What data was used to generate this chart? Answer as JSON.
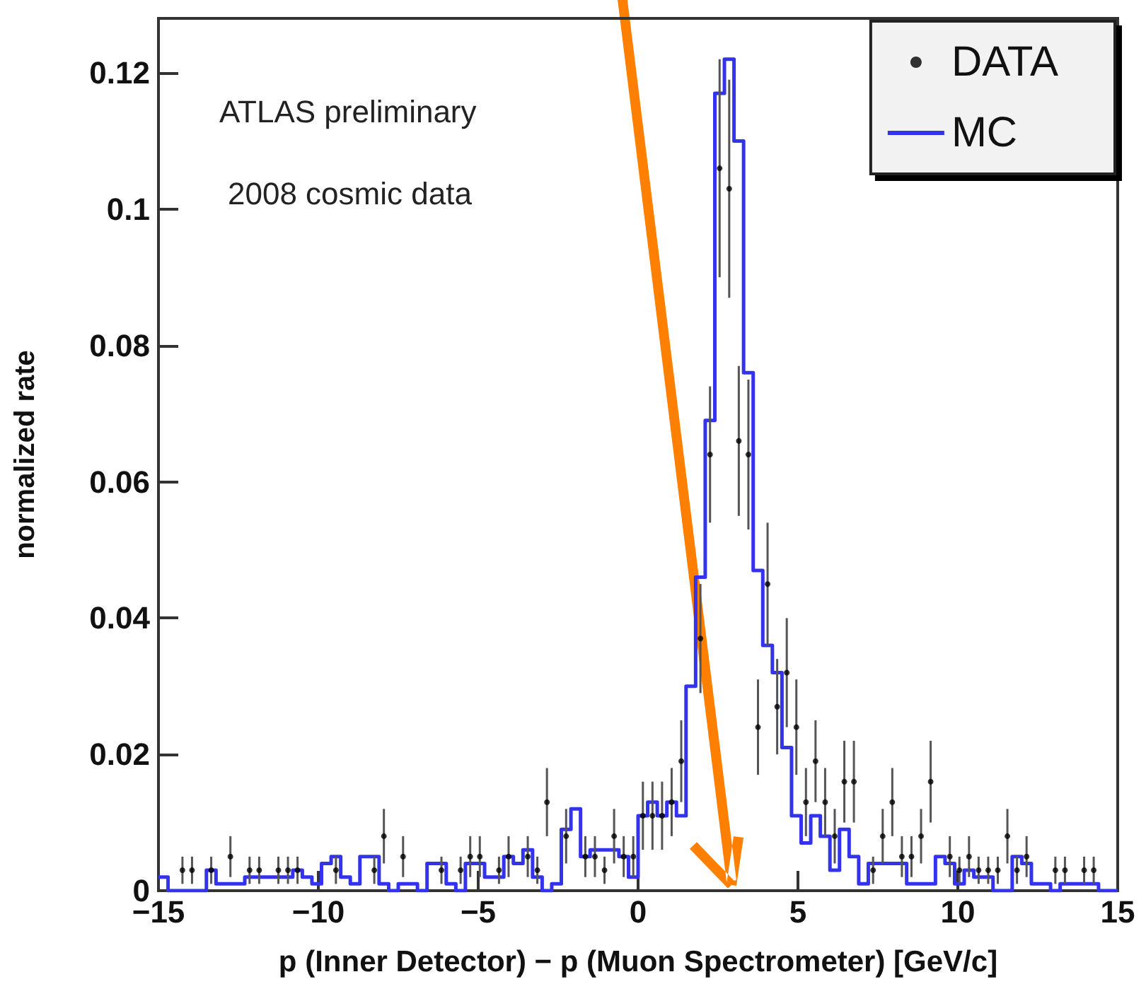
{
  "chart_data": {
    "type": "histogram",
    "xlabel": "p (Inner Detector) − p (Muon Spectrometer) [GeV/c]",
    "ylabel": "normalized rate",
    "annotations": [
      "ATLAS preliminary",
      "2008 cosmic data"
    ],
    "bins": [
      -15,
      -14.7,
      -14.4,
      -14.1,
      -13.8,
      -13.5,
      -13.2,
      -12.9,
      -12.6,
      -12.3,
      -12,
      -11.7,
      -11.4,
      -11.1,
      -10.8,
      -10.5,
      -10.2,
      -9.9,
      -9.6,
      -9.3,
      -9,
      -8.7,
      -8.4,
      -8.1,
      -7.8,
      -7.5,
      -7.2,
      -6.9,
      -6.6,
      -6.3,
      -6,
      -5.7,
      -5.4,
      -5.1,
      -4.8,
      -4.5,
      -4.2,
      -3.9,
      -3.6,
      -3.3,
      -3,
      -2.7,
      -2.4,
      -2.1,
      -1.8,
      -1.5,
      -1.2,
      -0.9,
      -0.6,
      -0.3,
      0,
      0.3,
      0.6,
      0.9,
      1.2,
      1.5,
      1.8,
      2.1,
      2.4,
      2.7,
      3,
      3.3,
      3.6,
      3.9,
      4.2,
      4.5,
      4.8,
      5.1,
      5.4,
      5.7,
      6,
      6.3,
      6.6,
      6.9,
      7.2,
      7.5,
      7.8,
      8.1,
      8.4,
      8.7,
      9,
      9.3,
      9.6,
      9.9,
      10.2,
      10.5,
      10.8,
      11.1,
      11.4,
      11.7,
      12,
      12.3,
      12.6,
      12.9,
      13.2,
      13.5,
      13.8,
      14.1,
      14.4,
      14.7,
      15
    ],
    "series": [
      {
        "name": "DATA",
        "type": "scatter",
        "color": "#000000",
        "x": [
          -14.25,
          -13.95,
          -13.35,
          -12.75,
          -12.15,
          -11.85,
          -11.25,
          -10.95,
          -10.65,
          -9.45,
          -8.25,
          -7.95,
          -7.35,
          -6.15,
          -5.55,
          -5.25,
          -4.95,
          -4.35,
          -4.05,
          -3.45,
          -3.15,
          -2.85,
          -2.25,
          -1.65,
          -1.35,
          -1.05,
          -0.75,
          -0.45,
          -0.15,
          0.15,
          0.45,
          0.75,
          1.05,
          1.35,
          1.95,
          2.25,
          2.55,
          2.85,
          3.15,
          3.45,
          3.75,
          4.05,
          4.35,
          4.65,
          4.95,
          5.25,
          5.55,
          5.85,
          6.15,
          6.45,
          6.75,
          7.35,
          7.65,
          7.95,
          8.25,
          8.55,
          8.85,
          9.15,
          9.75,
          10.05,
          10.35,
          10.65,
          10.95,
          11.25,
          11.55,
          11.85,
          12.15,
          13.05,
          13.35,
          13.95,
          14.25
        ],
        "values": [
          0.003,
          0.003,
          0.003,
          0.005,
          0.003,
          0.003,
          0.003,
          0.003,
          0.003,
          0.003,
          0.003,
          0.008,
          0.005,
          0.003,
          0.003,
          0.005,
          0.005,
          0.003,
          0.005,
          0.005,
          0.003,
          0.013,
          0.008,
          0.005,
          0.005,
          0.003,
          0.008,
          0.005,
          0.005,
          0.011,
          0.011,
          0.011,
          0.013,
          0.019,
          0.037,
          0.064,
          0.106,
          0.103,
          0.066,
          0.064,
          0.024,
          0.045,
          0.027,
          0.032,
          0.024,
          0.013,
          0.019,
          0.013,
          0.008,
          0.016,
          0.016,
          0.003,
          0.008,
          0.013,
          0.005,
          0.005,
          0.008,
          0.016,
          0.005,
          0.003,
          0.005,
          0.003,
          0.003,
          0.003,
          0.008,
          0.003,
          0.005,
          0.003,
          0.003,
          0.003,
          0.003
        ],
        "errors": [
          0.002,
          0.002,
          0.002,
          0.003,
          0.002,
          0.002,
          0.002,
          0.002,
          0.002,
          0.002,
          0.002,
          0.004,
          0.003,
          0.002,
          0.002,
          0.003,
          0.003,
          0.002,
          0.003,
          0.003,
          0.002,
          0.005,
          0.004,
          0.003,
          0.003,
          0.002,
          0.004,
          0.003,
          0.003,
          0.005,
          0.005,
          0.005,
          0.005,
          0.006,
          0.008,
          0.01,
          0.016,
          0.016,
          0.011,
          0.011,
          0.007,
          0.009,
          0.007,
          0.008,
          0.007,
          0.005,
          0.006,
          0.005,
          0.004,
          0.006,
          0.006,
          0.002,
          0.004,
          0.005,
          0.003,
          0.003,
          0.004,
          0.006,
          0.003,
          0.002,
          0.003,
          0.002,
          0.002,
          0.002,
          0.004,
          0.002,
          0.003,
          0.002,
          0.002,
          0.002,
          0.002
        ]
      },
      {
        "name": "MC",
        "color": "#3333ee",
        "values": [
          0.002,
          0,
          0,
          0,
          0,
          0.003,
          0.001,
          0.001,
          0.001,
          0.002,
          0.002,
          0.002,
          0.002,
          0.002,
          0.003,
          0.002,
          0.001,
          0.004,
          0.005,
          0.002,
          0.001,
          0.005,
          0.005,
          0.001,
          0,
          0.001,
          0.001,
          0,
          0.004,
          0.004,
          0.001,
          0,
          0.004,
          0.004,
          0.002,
          0.002,
          0.005,
          0.004,
          0.006,
          0.002,
          0,
          0.001,
          0.009,
          0.012,
          0.005,
          0.006,
          0.006,
          0.006,
          0.005,
          0.002,
          0.011,
          0.013,
          0.011,
          0.013,
          0.011,
          0.03,
          0.046,
          0.069,
          0.117,
          0.122,
          0.11,
          0.076,
          0.047,
          0.036,
          0.032,
          0.021,
          0.011,
          0.007,
          0.011,
          0.008,
          0.003,
          0.009,
          0.005,
          0.001,
          0.004,
          0.004,
          0.004,
          0.004,
          0.001,
          0.001,
          0.001,
          0.005,
          0.004,
          0.001,
          0.003,
          0.002,
          0.002,
          0,
          0,
          0.005,
          0.004,
          0.001,
          0.001,
          0,
          0.001,
          0.001,
          0.001,
          0.001,
          0,
          0
        ]
      }
    ],
    "xlim": [
      -15,
      15
    ],
    "xticks": [
      {
        "value": -15,
        "label": "−15"
      },
      {
        "value": -10,
        "label": "−10"
      },
      {
        "value": -5,
        "label": "−5"
      },
      0,
      5,
      10,
      15
    ],
    "ylim": [
      0,
      0.128
    ],
    "yticks": [
      0,
      0.02,
      0.04,
      0.06,
      0.08,
      0.1,
      0.12
    ],
    "marker": "circle",
    "legend": "top right",
    "grid": false
  }
}
